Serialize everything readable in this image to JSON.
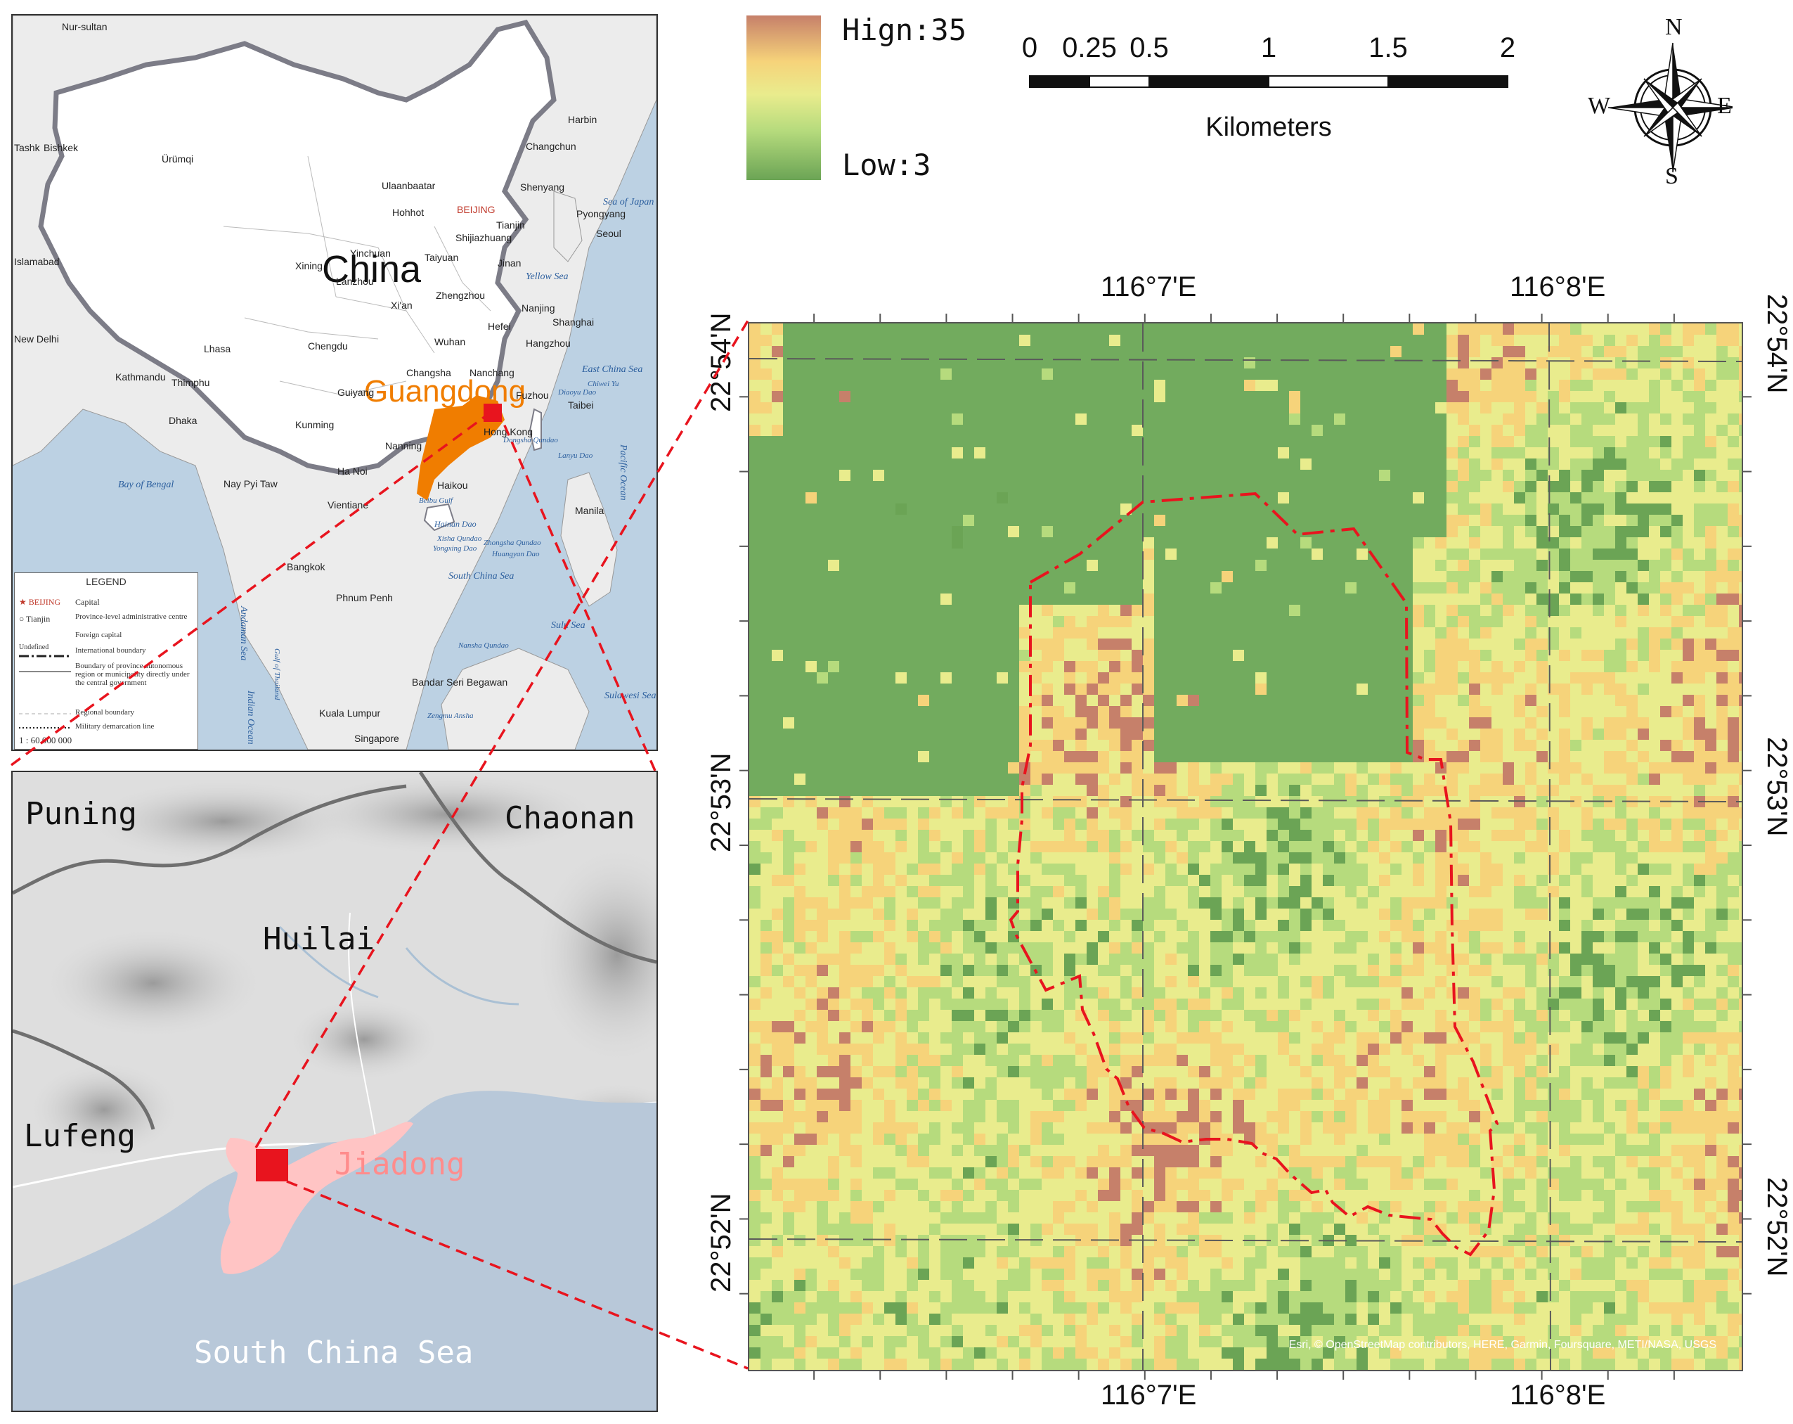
{
  "china_map": {
    "country_label": "China",
    "province_label": "Guangdong",
    "cities": [
      {
        "name": "Nur-sultan"
      },
      {
        "name": "Ulaanbaatar"
      },
      {
        "name": "Ürümqi"
      },
      {
        "name": "Bishkek"
      },
      {
        "name": "Tashk"
      },
      {
        "name": "Islamabad"
      },
      {
        "name": "New Delhi"
      },
      {
        "name": "Kathmandu"
      },
      {
        "name": "Thimphu"
      },
      {
        "name": "Dhaka"
      },
      {
        "name": "Lhasa"
      },
      {
        "name": "Xining"
      },
      {
        "name": "Lanzhou"
      },
      {
        "name": "Chengdu"
      },
      {
        "name": "Kunming"
      },
      {
        "name": "Guiyang"
      },
      {
        "name": "Nanning"
      },
      {
        "name": "Ha Noi"
      },
      {
        "name": "Vientiane"
      },
      {
        "name": "Nay Pyi Taw"
      },
      {
        "name": "Bangkok"
      },
      {
        "name": "Phnum Penh"
      },
      {
        "name": "Kuala Lumpur"
      },
      {
        "name": "Singapore"
      },
      {
        "name": "Bandar Seri Begawan"
      },
      {
        "name": "Manila"
      },
      {
        "name": "Haikou"
      },
      {
        "name": "Hong Kong"
      },
      {
        "name": "Changsha"
      },
      {
        "name": "Nanchang"
      },
      {
        "name": "Wuhan"
      },
      {
        "name": "Hefei"
      },
      {
        "name": "Nanjing"
      },
      {
        "name": "Shanghai"
      },
      {
        "name": "Hangzhou"
      },
      {
        "name": "Fuzhou"
      },
      {
        "name": "Taibei"
      },
      {
        "name": "Zhengzhou"
      },
      {
        "name": "Xi'an"
      },
      {
        "name": "Jinan"
      },
      {
        "name": "Taiyuan"
      },
      {
        "name": "Shijiazhuang"
      },
      {
        "name": "Hohhot"
      },
      {
        "name": "BEIJING"
      },
      {
        "name": "Tianjin"
      },
      {
        "name": "Shenyang"
      },
      {
        "name": "Changchun"
      },
      {
        "name": "Harbin"
      },
      {
        "name": "Pyongyang"
      },
      {
        "name": "Seoul"
      },
      {
        "name": "Yinchuan"
      }
    ],
    "seas": [
      {
        "name": "Bay of Bengal"
      },
      {
        "name": "Andaman Sea"
      },
      {
        "name": "Indian Ocean"
      },
      {
        "name": "South China Sea"
      },
      {
        "name": "East China Sea"
      },
      {
        "name": "Yellow Sea"
      },
      {
        "name": "Sea of Japan"
      },
      {
        "name": "Pacific Ocean"
      },
      {
        "name": "Sulu Sea"
      },
      {
        "name": "Sulawesi Sea"
      },
      {
        "name": "Gulf of Thailand"
      }
    ],
    "islands": [
      {
        "name": "Hainan Dao"
      },
      {
        "name": "Xisha Qundao"
      },
      {
        "name": "Yongxing Dao"
      },
      {
        "name": "Zhongsha Qundao"
      },
      {
        "name": "Huangyan Dao"
      },
      {
        "name": "Nansha Qundao"
      },
      {
        "name": "Dongsha Qundao"
      },
      {
        "name": "Diaoyu Dao"
      },
      {
        "name": "Chiwei Yu"
      },
      {
        "name": "Lanyu Dao"
      },
      {
        "name": "Zengmu Ansha"
      },
      {
        "name": "Beibu Gulf"
      }
    ],
    "legend": {
      "title": "LEGEND",
      "items": [
        {
          "symbol": "★ BEIJING",
          "text": "Capital"
        },
        {
          "symbol": "○ Tianjin",
          "text": "Province-level administrative centre"
        },
        {
          "symbol": "",
          "text": "Foreign capital"
        },
        {
          "symbol": "Undefined",
          "text": "International boundary"
        },
        {
          "symbol": "",
          "text": "Boundary of province autonomous region or municipality directly under the central government"
        },
        {
          "symbol": "",
          "text": "Regional boundary"
        },
        {
          "symbol": "",
          "text": "Military demarcation line"
        }
      ],
      "scale_text": "1 : 60 000 000"
    }
  },
  "region_map": {
    "labels": [
      {
        "name": "Puning"
      },
      {
        "name": "Chaonan"
      },
      {
        "name": "Huilai"
      },
      {
        "name": "Lufeng"
      },
      {
        "name": "Jiadong"
      },
      {
        "name": "South China Sea"
      }
    ]
  },
  "raster_legend": {
    "high_label": "Hign:35",
    "low_label": "Low:3",
    "high_value": 35,
    "low_value": 3,
    "ramp_colors": [
      "#c6806a",
      "#f6d37a",
      "#e9ec8d",
      "#b6db7d",
      "#6ba455"
    ]
  },
  "scale_bar": {
    "ticks": [
      "0",
      "0.25",
      "0.5",
      "1",
      "1.5",
      "2"
    ],
    "tick_values": [
      0,
      0.25,
      0.5,
      1,
      1.5,
      2
    ],
    "unit": "Kilometers"
  },
  "north_arrow": {
    "n": "N",
    "s": "S",
    "e": "E",
    "w": "W"
  },
  "coordinates": {
    "top_lon": [
      "116°7'E",
      "116°8'E"
    ],
    "bottom_lon": [
      "116°7'E",
      "116°8'E"
    ],
    "left_lat": [
      "22°54'N",
      "22°53'N",
      "22°52'N"
    ],
    "right_lat": [
      "22°54'N",
      "22°53'N",
      "22°52'N"
    ]
  },
  "attribution": "Esri, © OpenStreetMap contributors, HERE, Garmin, Foursquare, METI/NASA, USGS",
  "colors": {
    "guangdong": "#f07d00",
    "study_area_marker": "#e8141e",
    "jiadong_fill": "#ffc4c4",
    "connector_line": "#e8141e",
    "sea": "#bcd1e3"
  }
}
